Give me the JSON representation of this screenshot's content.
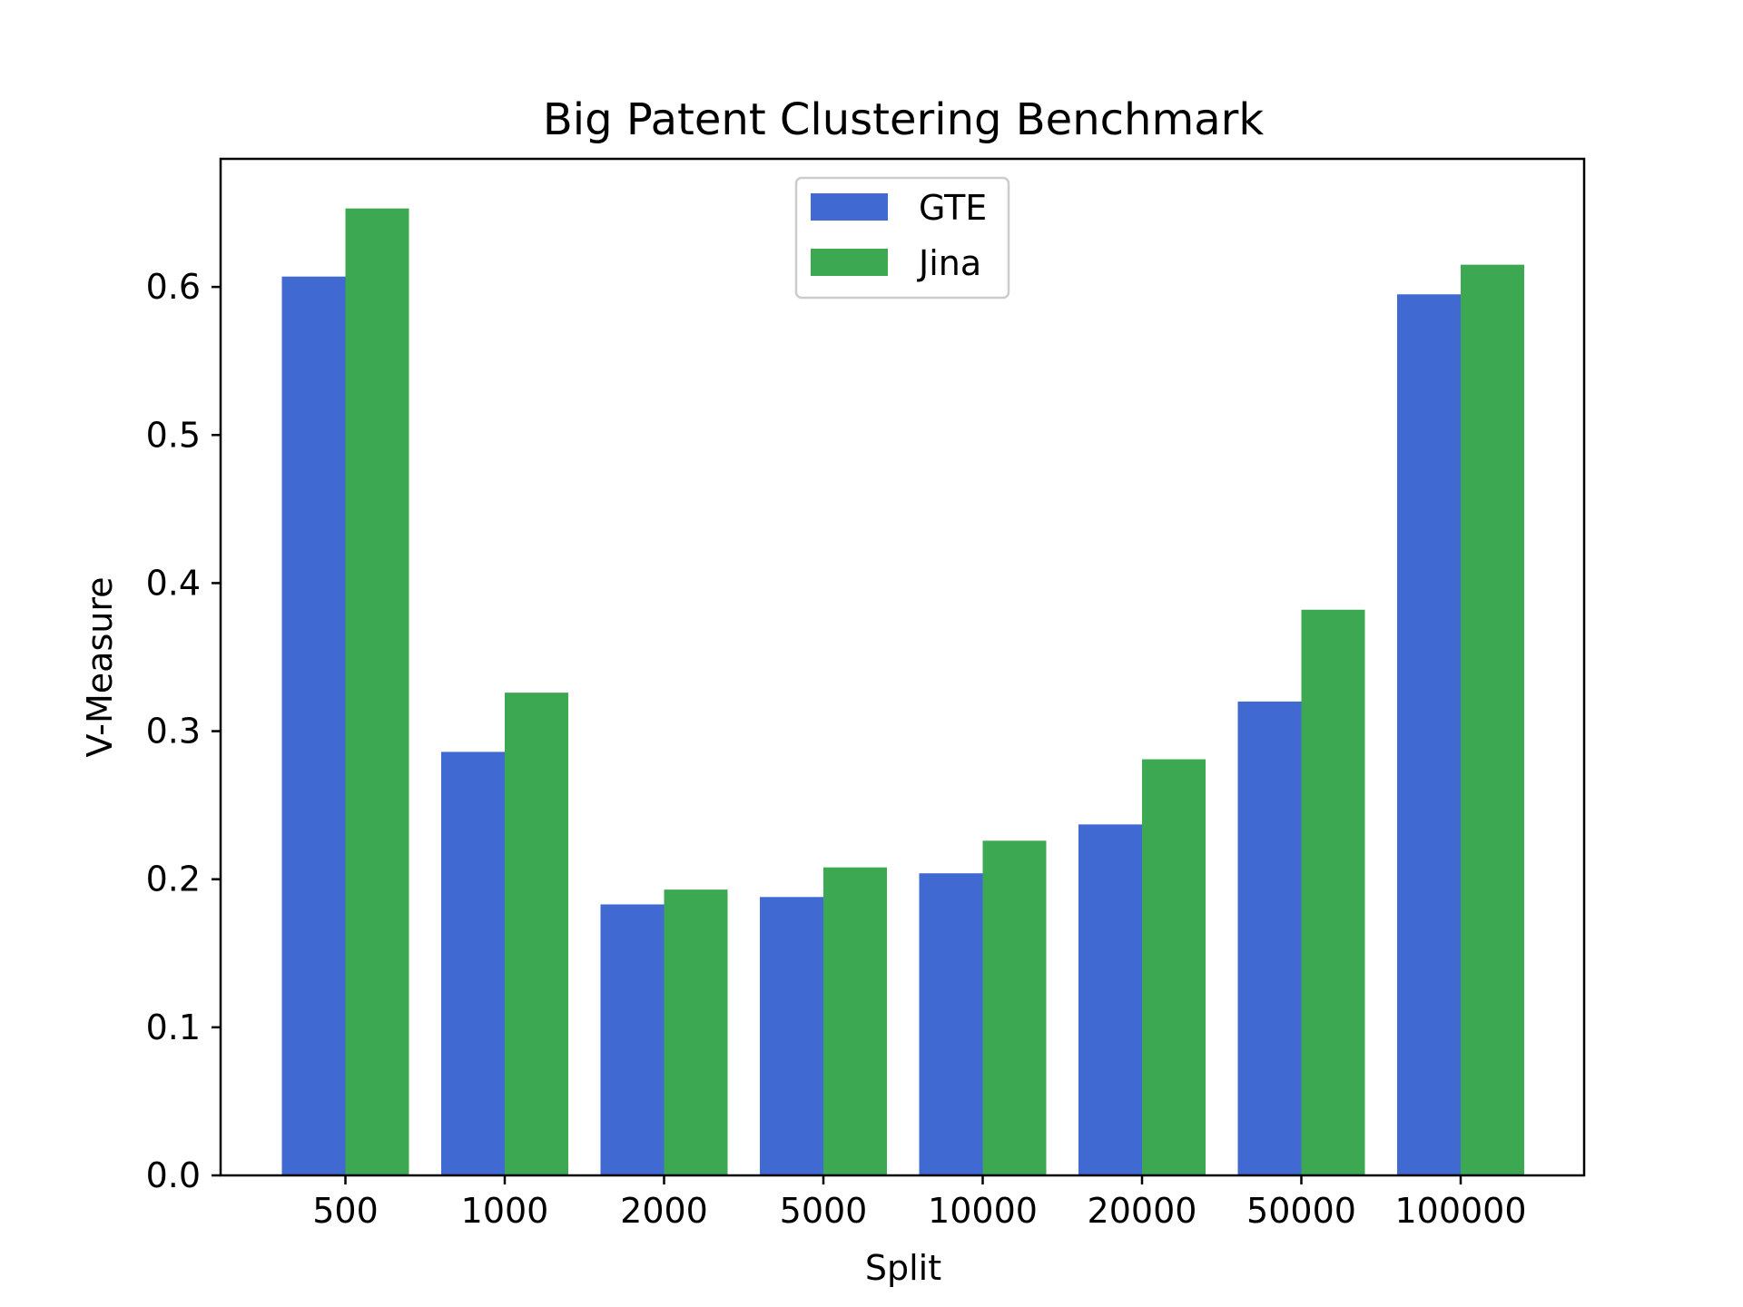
{
  "chart_data": {
    "type": "bar",
    "title": "Big Patent Clustering Benchmark",
    "xlabel": "Split",
    "ylabel": "V-Measure",
    "categories": [
      "500",
      "1000",
      "2000",
      "5000",
      "10000",
      "20000",
      "50000",
      "100000"
    ],
    "series": [
      {
        "name": "GTE",
        "color": "#4169d2",
        "values": [
          0.607,
          0.286,
          0.183,
          0.188,
          0.204,
          0.237,
          0.32,
          0.595
        ]
      },
      {
        "name": "Jina",
        "color": "#3ca851",
        "values": [
          0.653,
          0.326,
          0.193,
          0.208,
          0.226,
          0.281,
          0.382,
          0.615
        ]
      }
    ],
    "ylim": [
      0,
      0.6865
    ],
    "yticks": [
      "0.0",
      "0.1",
      "0.2",
      "0.3",
      "0.4",
      "0.5",
      "0.6"
    ],
    "grid": false,
    "legend_position": "upper-center"
  }
}
